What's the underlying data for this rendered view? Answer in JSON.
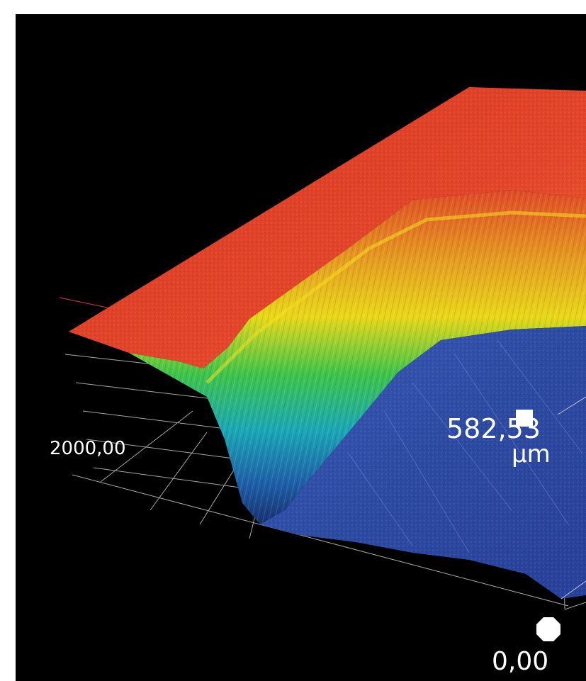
{
  "viewer": {
    "axis_tick_label": "2000,00",
    "height_value": "582,53",
    "height_unit": "µm",
    "origin_value": "0,00"
  },
  "colors": {
    "background": "#000000",
    "surface_high": "#e14a2a",
    "surface_mid_yellow": "#e6d21a",
    "surface_mid_green": "#2ac24a",
    "surface_mid_cyan": "#1fa6b8",
    "surface_low": "#2b4aa8",
    "grid_line": "#cfcfcf"
  },
  "icons": {
    "height_marker": "square-handle-icon",
    "origin_marker": "octagon-handle-icon"
  }
}
